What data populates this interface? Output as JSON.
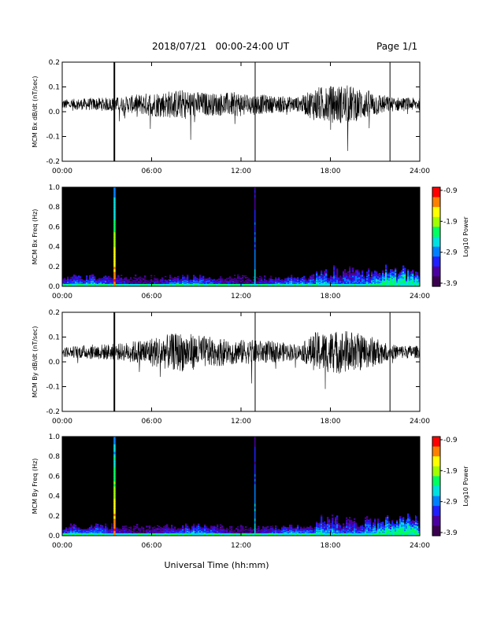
{
  "header": {
    "date_range": "2018/07/21   00:00-24:00 UT",
    "page_label": "Page 1/1"
  },
  "x_axis": {
    "label": "Universal Time (hh:mm)",
    "ticks": [
      "00:00",
      "06:00",
      "12:00",
      "18:00",
      "24:00"
    ]
  },
  "chart_data": [
    {
      "type": "line",
      "ylabel": "MCM Bx dB/dt (nT/sec)",
      "xlim": [
        0,
        24
      ],
      "ylim": [
        -0.2,
        0.2
      ],
      "yticks": [
        "0.2",
        "0.1",
        "0.0",
        "-0.1",
        "-0.2"
      ],
      "baseline": 0.03,
      "spikes_hours": [
        3.5,
        12.95,
        22.0
      ],
      "envelope": [
        {
          "h": 0,
          "amp": 0.02
        },
        {
          "h": 2,
          "amp": 0.025
        },
        {
          "h": 4,
          "amp": 0.03
        },
        {
          "h": 6,
          "amp": 0.05
        },
        {
          "h": 8,
          "amp": 0.06
        },
        {
          "h": 10,
          "amp": 0.045
        },
        {
          "h": 12,
          "amp": 0.05
        },
        {
          "h": 14,
          "amp": 0.035
        },
        {
          "h": 16,
          "amp": 0.03
        },
        {
          "h": 17,
          "amp": 0.07
        },
        {
          "h": 19,
          "amp": 0.08
        },
        {
          "h": 21,
          "amp": 0.05
        },
        {
          "h": 22,
          "amp": 0.03
        },
        {
          "h": 24,
          "amp": 0.025
        }
      ]
    },
    {
      "type": "heatmap",
      "ylabel": "MCM Bx Freq (Hz)",
      "xlim": [
        0,
        24
      ],
      "ylim": [
        0,
        1.0
      ],
      "yticks": [
        "1.0",
        "0.8",
        "0.6",
        "0.4",
        "0.2",
        "0.0"
      ],
      "colorbar": {
        "label": "Log10 Power",
        "ticks": [
          "-0.9",
          "-1.9",
          "-2.9",
          "-3.9"
        ],
        "range": [
          -3.9,
          -0.9
        ]
      },
      "vertical_lines_hours": [
        3.5,
        12.95
      ]
    },
    {
      "type": "line",
      "ylabel": "MCM By dB/dt (nT/sec)",
      "xlim": [
        0,
        24
      ],
      "ylim": [
        -0.2,
        0.2
      ],
      "yticks": [
        "0.2",
        "0.1",
        "0.0",
        "-0.1",
        "-0.2"
      ],
      "baseline": 0.04,
      "spikes_hours": [
        3.5,
        12.95,
        22.0
      ],
      "envelope": [
        {
          "h": 0,
          "amp": 0.02
        },
        {
          "h": 2,
          "amp": 0.03
        },
        {
          "h": 4,
          "amp": 0.035
        },
        {
          "h": 6,
          "amp": 0.06
        },
        {
          "h": 8,
          "amp": 0.08
        },
        {
          "h": 10,
          "amp": 0.06
        },
        {
          "h": 12,
          "amp": 0.05
        },
        {
          "h": 14,
          "amp": 0.045
        },
        {
          "h": 16,
          "amp": 0.03
        },
        {
          "h": 17,
          "amp": 0.08
        },
        {
          "h": 19,
          "amp": 0.09
        },
        {
          "h": 21,
          "amp": 0.06
        },
        {
          "h": 22,
          "amp": 0.03
        },
        {
          "h": 24,
          "amp": 0.025
        }
      ]
    },
    {
      "type": "heatmap",
      "ylabel": "MCM By Freq (Hz)",
      "xlim": [
        0,
        24
      ],
      "ylim": [
        0,
        1.0
      ],
      "yticks": [
        "1.0",
        "0.8",
        "0.6",
        "0.4",
        "0.2",
        "0.0"
      ],
      "colorbar": {
        "label": "Log10 Power",
        "ticks": [
          "-0.9",
          "-1.9",
          "-2.9",
          "-3.9"
        ],
        "range": [
          -3.9,
          -0.9
        ]
      },
      "vertical_lines_hours": [
        3.5,
        12.95
      ]
    }
  ]
}
